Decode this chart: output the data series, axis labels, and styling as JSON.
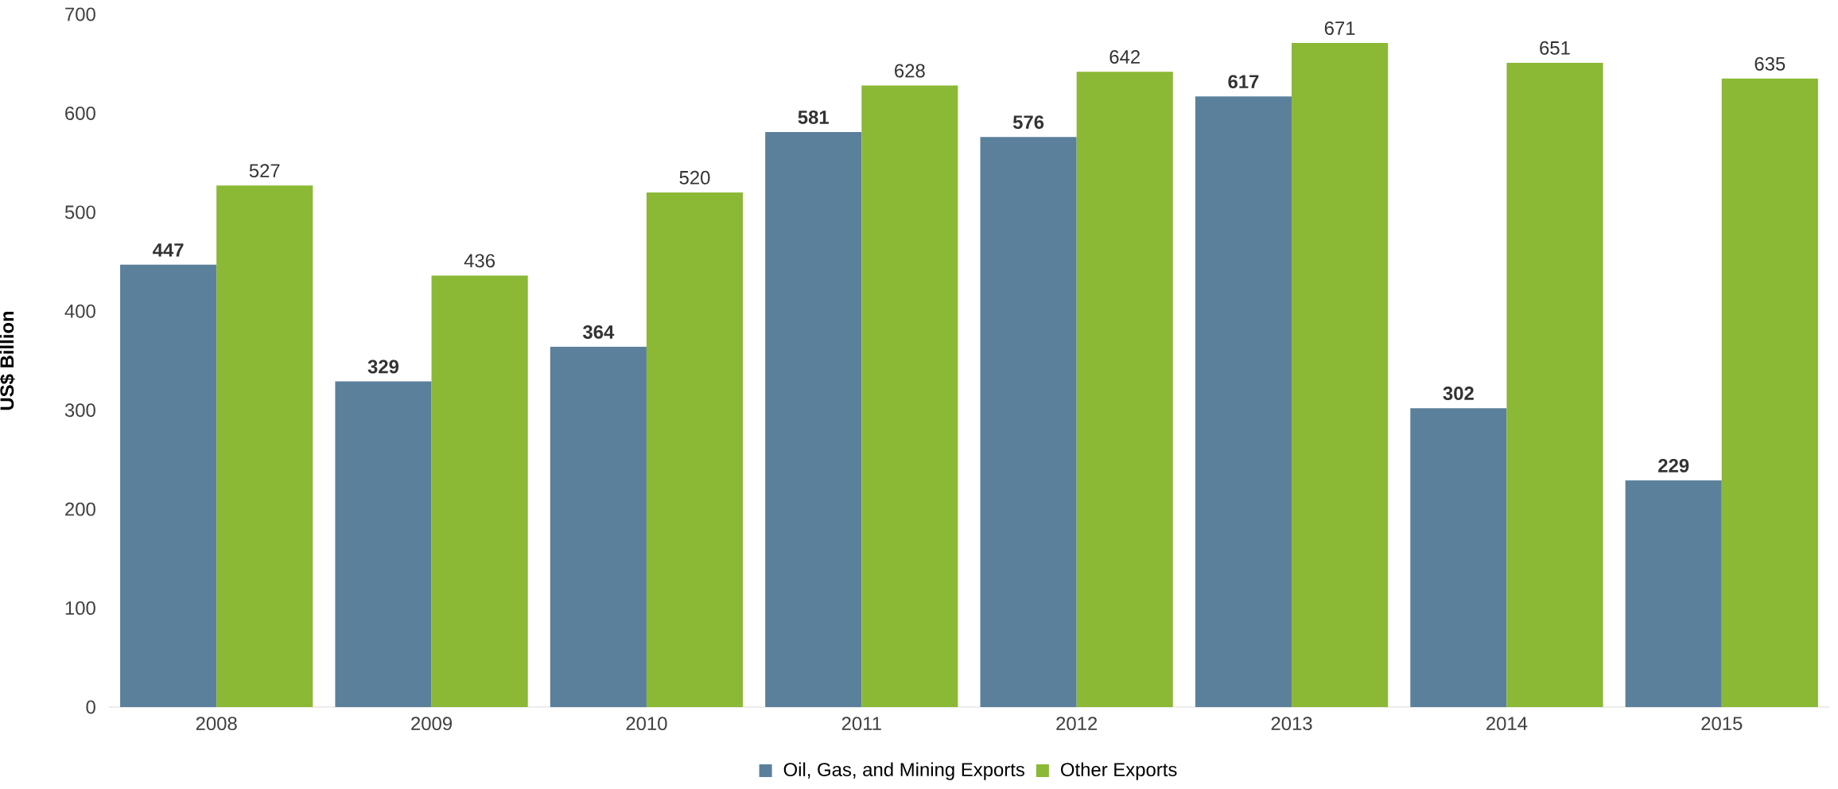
{
  "chart_data": {
    "type": "bar",
    "ylabel": "US$ Billion",
    "categories": [
      "2008",
      "2009",
      "2010",
      "2011",
      "2012",
      "2013",
      "2014",
      "2015"
    ],
    "series": [
      {
        "name": "Oil, Gas, and Mining Exports",
        "color": "#5b809b",
        "values": [
          447,
          329,
          364,
          581,
          576,
          617,
          302,
          229
        ]
      },
      {
        "name": "Other Exports",
        "color": "#8bb835",
        "values": [
          527,
          436,
          520,
          628,
          642,
          671,
          651,
          635
        ]
      }
    ],
    "ylim": [
      0,
      700
    ],
    "yticks": [
      0,
      100,
      200,
      300,
      400,
      500,
      600,
      700
    ],
    "data_labels": true,
    "legend": "bottom"
  }
}
